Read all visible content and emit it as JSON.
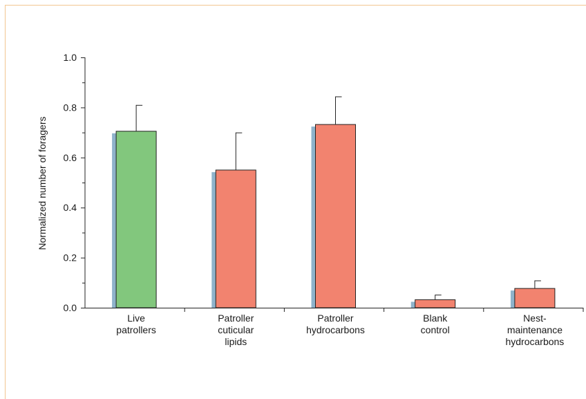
{
  "chart_data": {
    "type": "bar",
    "title": "",
    "xlabel": "",
    "ylabel": "Normalized number of foragers",
    "ylim": [
      0,
      1.0
    ],
    "yticks": [
      "0.0",
      "0.2",
      "0.4",
      "0.6",
      "0.8",
      "1.0"
    ],
    "categories": [
      [
        "Live",
        "patrollers"
      ],
      [
        "Patroller",
        "cuticular",
        "lipids"
      ],
      [
        "Patroller",
        "hydrocarbons"
      ],
      [
        "Blank",
        "control"
      ],
      [
        "Nest-",
        "maintenance",
        "hydrocarbons"
      ]
    ],
    "values": [
      0.705,
      0.55,
      0.732,
      0.032,
      0.077
    ],
    "errors": [
      0.105,
      0.15,
      0.112,
      0.02,
      0.032
    ],
    "bar_colors": [
      "#82c77d",
      "#f2836f",
      "#f2836f",
      "#f2836f",
      "#f2836f"
    ],
    "shadow_color": "#8fb3cb",
    "grid": false,
    "legend": "none"
  }
}
